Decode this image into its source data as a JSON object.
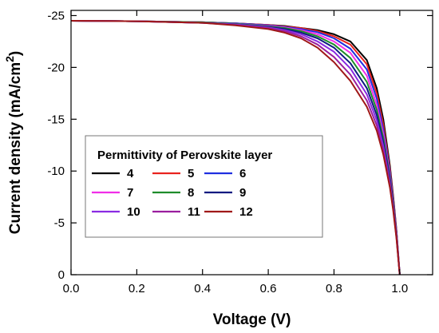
{
  "chart_data": {
    "type": "line",
    "xlabel": "Voltage (V)",
    "ylabel": "Current density (mA/cm",
    "ylabel_superscript": "2",
    "ylabel_close": ")",
    "xlim": [
      0.0,
      1.1
    ],
    "ylim": [
      0,
      -25.5
    ],
    "x_ticks": [
      0.0,
      0.2,
      0.4,
      0.6,
      0.8,
      1.0
    ],
    "x_tick_labels": [
      "0.0",
      "0.2",
      "0.4",
      "0.6",
      "0.8",
      "1.0"
    ],
    "y_ticks": [
      -25,
      -20,
      -15,
      -10,
      -5,
      0
    ],
    "y_tick_labels": [
      "-25",
      "-20",
      "-15",
      "-10",
      "-5",
      "0"
    ],
    "grid": false,
    "legend_title": "Permittivity of Perovskite layer",
    "legend_position": "center-left",
    "series": [
      {
        "name": "4",
        "color": "#000000",
        "x": [
          0.0,
          0.2,
          0.4,
          0.5,
          0.6,
          0.65,
          0.7,
          0.75,
          0.8,
          0.85,
          0.9,
          0.93,
          0.95,
          0.97,
          0.98,
          0.99,
          1.0
        ],
        "y": [
          -24.5,
          -24.45,
          -24.35,
          -24.25,
          -24.1,
          -24.0,
          -23.8,
          -23.6,
          -23.2,
          -22.5,
          -20.7,
          -18.0,
          -15.0,
          -10.5,
          -7.6,
          -4.3,
          0.0
        ]
      },
      {
        "name": "5",
        "color": "#e8231e",
        "x": [
          0.0,
          0.2,
          0.4,
          0.5,
          0.6,
          0.65,
          0.7,
          0.75,
          0.8,
          0.85,
          0.9,
          0.93,
          0.95,
          0.97,
          0.98,
          0.99,
          1.0
        ],
        "y": [
          -24.5,
          -24.45,
          -24.35,
          -24.25,
          -24.1,
          -23.95,
          -23.8,
          -23.5,
          -23.0,
          -22.2,
          -20.3,
          -17.5,
          -14.5,
          -10.2,
          -7.4,
          -4.2,
          0.0
        ]
      },
      {
        "name": "6",
        "color": "#1f2fe0",
        "x": [
          0.0,
          0.2,
          0.4,
          0.5,
          0.6,
          0.65,
          0.7,
          0.75,
          0.8,
          0.85,
          0.9,
          0.93,
          0.95,
          0.97,
          0.98,
          0.99,
          1.0
        ],
        "y": [
          -24.5,
          -24.45,
          -24.35,
          -24.25,
          -24.05,
          -23.9,
          -23.7,
          -23.4,
          -22.8,
          -21.8,
          -19.8,
          -17.0,
          -14.0,
          -9.9,
          -7.2,
          -4.1,
          0.0
        ]
      },
      {
        "name": "7",
        "color": "#f02ee8",
        "x": [
          0.0,
          0.2,
          0.4,
          0.5,
          0.6,
          0.65,
          0.7,
          0.75,
          0.8,
          0.85,
          0.9,
          0.93,
          0.95,
          0.97,
          0.98,
          0.99,
          1.0
        ],
        "y": [
          -24.5,
          -24.45,
          -24.35,
          -24.2,
          -24.0,
          -23.85,
          -23.6,
          -23.2,
          -22.5,
          -21.4,
          -19.2,
          -16.4,
          -13.6,
          -9.6,
          -7.0,
          -4.0,
          0.0
        ]
      },
      {
        "name": "8",
        "color": "#1e8c2a",
        "x": [
          0.0,
          0.2,
          0.4,
          0.5,
          0.6,
          0.65,
          0.7,
          0.75,
          0.8,
          0.85,
          0.9,
          0.93,
          0.95,
          0.97,
          0.98,
          0.99,
          1.0
        ],
        "y": [
          -24.5,
          -24.45,
          -24.35,
          -24.2,
          -23.95,
          -23.8,
          -23.5,
          -23.0,
          -22.2,
          -20.9,
          -18.6,
          -15.9,
          -13.2,
          -9.4,
          -6.9,
          -3.9,
          0.0
        ]
      },
      {
        "name": "9",
        "color": "#0c1a80",
        "x": [
          0.0,
          0.2,
          0.4,
          0.5,
          0.6,
          0.65,
          0.7,
          0.75,
          0.8,
          0.85,
          0.9,
          0.93,
          0.95,
          0.97,
          0.98,
          0.99,
          1.0
        ],
        "y": [
          -24.5,
          -24.45,
          -24.3,
          -24.15,
          -23.9,
          -23.7,
          -23.35,
          -22.8,
          -21.9,
          -20.4,
          -18.0,
          -15.4,
          -12.8,
          -9.2,
          -6.7,
          -3.8,
          0.0
        ]
      },
      {
        "name": "10",
        "color": "#8a2be2",
        "x": [
          0.0,
          0.2,
          0.4,
          0.5,
          0.6,
          0.65,
          0.7,
          0.75,
          0.8,
          0.85,
          0.9,
          0.93,
          0.95,
          0.97,
          0.98,
          0.99,
          1.0
        ],
        "y": [
          -24.5,
          -24.45,
          -24.3,
          -24.15,
          -23.85,
          -23.6,
          -23.2,
          -22.5,
          -21.5,
          -19.9,
          -17.4,
          -14.9,
          -12.4,
          -8.9,
          -6.5,
          -3.7,
          0.0
        ]
      },
      {
        "name": "11",
        "color": "#9a1e9e",
        "x": [
          0.0,
          0.2,
          0.4,
          0.5,
          0.6,
          0.65,
          0.7,
          0.75,
          0.8,
          0.85,
          0.9,
          0.93,
          0.95,
          0.97,
          0.98,
          0.99,
          1.0
        ],
        "y": [
          -24.5,
          -24.45,
          -24.3,
          -24.1,
          -23.8,
          -23.5,
          -23.0,
          -22.2,
          -21.0,
          -19.3,
          -16.8,
          -14.4,
          -12.0,
          -8.7,
          -6.4,
          -3.6,
          0.0
        ]
      },
      {
        "name": "12",
        "color": "#a01818",
        "x": [
          0.0,
          0.2,
          0.4,
          0.5,
          0.6,
          0.65,
          0.7,
          0.75,
          0.8,
          0.85,
          0.9,
          0.93,
          0.95,
          0.97,
          0.98,
          0.99,
          1.0
        ],
        "y": [
          -24.5,
          -24.45,
          -24.3,
          -24.05,
          -23.7,
          -23.35,
          -22.8,
          -21.9,
          -20.5,
          -18.7,
          -16.2,
          -13.9,
          -11.6,
          -8.4,
          -6.2,
          -3.5,
          0.0
        ]
      }
    ]
  }
}
